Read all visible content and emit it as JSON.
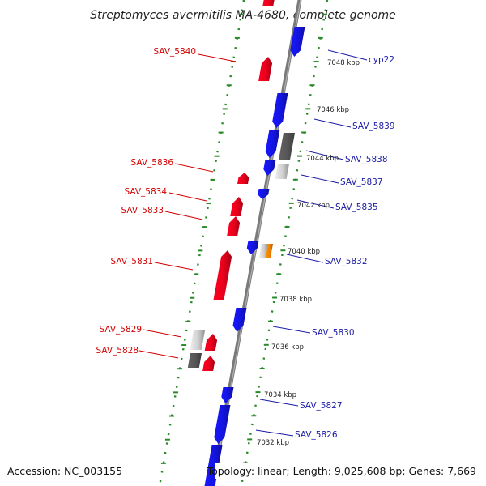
{
  "title": "Streptomyces avermitilis MA-4680, complete genome",
  "accession_text": "Accession: NC_003155",
  "topology_text": "Topology: linear; Length: 9,025,608 bp; Genes: 7,669",
  "colors": {
    "forward": "#e8001c",
    "reverse": "#1414e0",
    "backbone": "#7a7a7a",
    "ticks": "#2a8a2a",
    "grey_dark": "#555555",
    "grey_light": "#cfcfcf",
    "orange": "#f08000",
    "label_left": "#d40000",
    "label_right": "#1a1aa6"
  },
  "kbp_labels": [
    "7032 kbp",
    "7034 kbp",
    "7036 kbp",
    "7038 kbp",
    "7040 kbp",
    "7042 kbp",
    "7044 kbp",
    "7046 kbp",
    "7048 kbp"
  ],
  "left_labels": [
    "SAV_5840",
    "SAV_5836",
    "SAV_5834",
    "SAV_5833",
    "SAV_5831",
    "SAV_5829",
    "SAV_5828"
  ],
  "right_labels": [
    "cyp22",
    "SAV_5839",
    "SAV_5838",
    "SAV_5837",
    "SAV_5835",
    "SAV_5832",
    "SAV_5830",
    "SAV_5827",
    "SAV_5826"
  ]
}
